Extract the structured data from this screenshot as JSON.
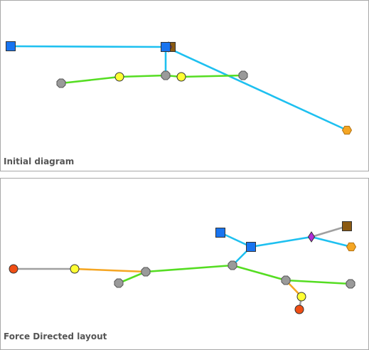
{
  "panels": [
    {
      "id": "initial",
      "caption": "Initial diagram",
      "nodes": [
        {
          "id": "sq1",
          "shape": "square",
          "color": "#1874f0"
        },
        {
          "id": "sq2",
          "shape": "square",
          "color": "#1874f0"
        },
        {
          "id": "br1",
          "shape": "square",
          "color": "#8b5a12"
        },
        {
          "id": "dm1",
          "shape": "diamond",
          "color": "#b22ad8"
        },
        {
          "id": "g1",
          "shape": "octagon",
          "color": "#9a9a9a"
        },
        {
          "id": "y1",
          "shape": "circle",
          "color": "#ffff33"
        },
        {
          "id": "g2",
          "shape": "octagon",
          "color": "#9a9a9a"
        },
        {
          "id": "y2",
          "shape": "circle",
          "color": "#ffff33"
        },
        {
          "id": "g3",
          "shape": "octagon",
          "color": "#9a9a9a"
        },
        {
          "id": "or1",
          "shape": "hexagon",
          "color": "#f5a623"
        }
      ],
      "edges": [
        {
          "from": "sq1",
          "to": "sq2",
          "color": "#1ec0f0"
        },
        {
          "from": "sq2",
          "to": "g2",
          "color": "#1ec0f0"
        },
        {
          "from": "sq2",
          "to": "or1",
          "color": "#1ec0f0"
        },
        {
          "from": "g1",
          "to": "y1",
          "color": "#55dd22"
        },
        {
          "from": "y1",
          "to": "g2",
          "color": "#55dd22"
        },
        {
          "from": "g2",
          "to": "y2",
          "color": "#55dd22"
        },
        {
          "from": "y2",
          "to": "g3",
          "color": "#55dd22"
        }
      ]
    },
    {
      "id": "force",
      "caption": "Force Directed layout",
      "nodes": [
        {
          "id": "r1",
          "shape": "circle",
          "color": "#f04e14"
        },
        {
          "id": "y1",
          "shape": "circle",
          "color": "#ffff33"
        },
        {
          "id": "g1",
          "shape": "octagon",
          "color": "#9a9a9a"
        },
        {
          "id": "g2",
          "shape": "octagon",
          "color": "#9a9a9a"
        },
        {
          "id": "g3",
          "shape": "octagon",
          "color": "#9a9a9a"
        },
        {
          "id": "sq1",
          "shape": "square",
          "color": "#1874f0"
        },
        {
          "id": "sq2",
          "shape": "square",
          "color": "#1874f0"
        },
        {
          "id": "dm1",
          "shape": "diamond",
          "color": "#b22ad8"
        },
        {
          "id": "br1",
          "shape": "square",
          "color": "#8b5a12"
        },
        {
          "id": "or1",
          "shape": "hexagon",
          "color": "#f5a623"
        },
        {
          "id": "g4",
          "shape": "octagon",
          "color": "#9a9a9a"
        },
        {
          "id": "g5",
          "shape": "octagon",
          "color": "#9a9a9a"
        },
        {
          "id": "y2",
          "shape": "circle",
          "color": "#ffff33"
        },
        {
          "id": "r2",
          "shape": "circle",
          "color": "#f04e14"
        }
      ],
      "edges": [
        {
          "from": "r1",
          "to": "y1",
          "color": "#a0a0a0"
        },
        {
          "from": "y1",
          "to": "g2",
          "color": "#f5a623"
        },
        {
          "from": "g1",
          "to": "g2",
          "color": "#55dd22"
        },
        {
          "from": "g2",
          "to": "g3",
          "color": "#55dd22"
        },
        {
          "from": "g3",
          "to": "sq2",
          "color": "#1ec0f0"
        },
        {
          "from": "sq1",
          "to": "sq2",
          "color": "#1ec0f0"
        },
        {
          "from": "sq2",
          "to": "dm1",
          "color": "#1ec0f0"
        },
        {
          "from": "dm1",
          "to": "br1",
          "color": "#a0a0a0"
        },
        {
          "from": "dm1",
          "to": "or1",
          "color": "#1ec0f0"
        },
        {
          "from": "g3",
          "to": "g4",
          "color": "#55dd22"
        },
        {
          "from": "g4",
          "to": "g5",
          "color": "#55dd22"
        },
        {
          "from": "g4",
          "to": "y2",
          "color": "#f5a623"
        },
        {
          "from": "y2",
          "to": "r2",
          "color": "#a0a0a0"
        }
      ]
    }
  ]
}
